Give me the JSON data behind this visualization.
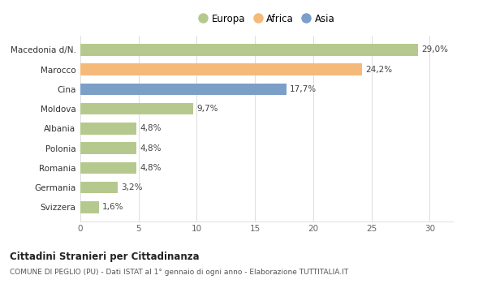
{
  "categories": [
    "Svizzera",
    "Germania",
    "Romania",
    "Polonia",
    "Albania",
    "Moldova",
    "Cina",
    "Marocco",
    "Macedonia d/N."
  ],
  "values": [
    1.6,
    3.2,
    4.8,
    4.8,
    4.8,
    9.7,
    17.7,
    24.2,
    29.0
  ],
  "labels": [
    "1,6%",
    "3,2%",
    "4,8%",
    "4,8%",
    "4,8%",
    "9,7%",
    "17,7%",
    "24,2%",
    "29,0%"
  ],
  "colors": [
    "#b5c98e",
    "#b5c98e",
    "#b5c98e",
    "#b5c98e",
    "#b5c98e",
    "#b5c98e",
    "#7b9fc7",
    "#f5b97a",
    "#b5c98e"
  ],
  "legend_labels": [
    "Europa",
    "Africa",
    "Asia"
  ],
  "legend_colors": [
    "#b5c98e",
    "#f5b97a",
    "#7b9fc7"
  ],
  "xlim": [
    0,
    32
  ],
  "xticks": [
    0,
    5,
    10,
    15,
    20,
    25,
    30
  ],
  "title": "Cittadini Stranieri per Cittadinanza",
  "subtitle": "COMUNE DI PEGLIO (PU) - Dati ISTAT al 1° gennaio di ogni anno - Elaborazione TUTTITALIA.IT",
  "bg_color": "#ffffff",
  "grid_color": "#dddddd"
}
